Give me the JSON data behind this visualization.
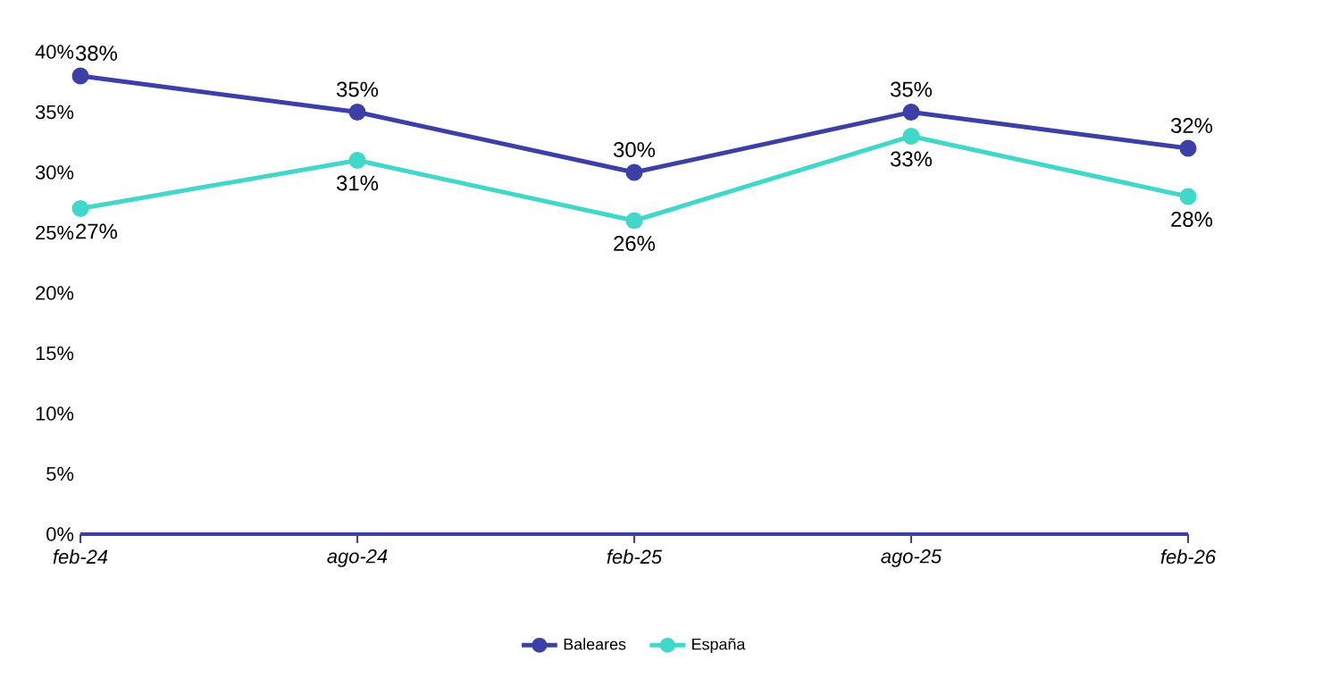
{
  "chart_data": {
    "type": "line",
    "categories": [
      "feb-24",
      "ago-24",
      "feb-25",
      "ago-25",
      "feb-26"
    ],
    "series": [
      {
        "name": "Baleares",
        "color": "#3b3fa6",
        "values": [
          38,
          35,
          30,
          35,
          32
        ],
        "value_labels": [
          "38%",
          "35%",
          "30%",
          "35%",
          "32%"
        ]
      },
      {
        "name": "España",
        "color": "#41d8c9",
        "values": [
          27,
          31,
          26,
          33,
          28
        ],
        "value_labels": [
          "27%",
          "31%",
          "26%",
          "33%",
          "28%"
        ]
      }
    ],
    "ylim": [
      0,
      40
    ],
    "yticks": [
      {
        "value": 0,
        "label": "0%"
      },
      {
        "value": 5,
        "label": "5%"
      },
      {
        "value": 10,
        "label": "10%"
      },
      {
        "value": 15,
        "label": "15%"
      },
      {
        "value": 20,
        "label": "20%"
      },
      {
        "value": 25,
        "label": "25%"
      },
      {
        "value": 30,
        "label": "30%"
      },
      {
        "value": 35,
        "label": "35%"
      },
      {
        "value": 40,
        "label": "40%"
      }
    ],
    "grid": false,
    "legend": "bottom",
    "marker": "circle",
    "line_style": "solid"
  }
}
